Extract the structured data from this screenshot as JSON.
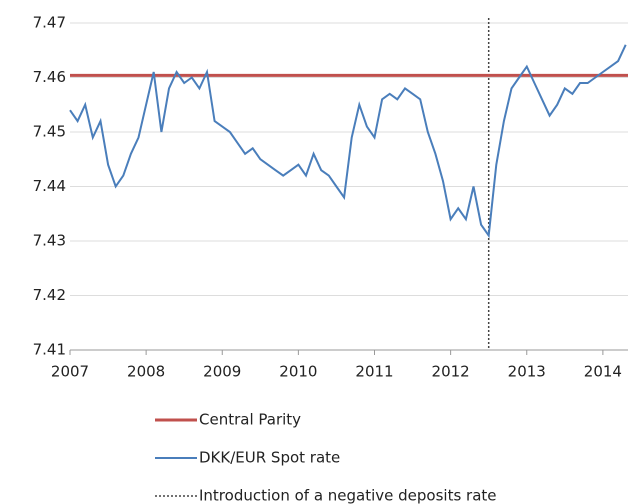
{
  "chart_data": {
    "type": "line",
    "x": [
      2007.0,
      2007.1,
      2007.2,
      2007.3,
      2007.4,
      2007.5,
      2007.6,
      2007.7,
      2007.8,
      2007.9,
      2008.0,
      2008.1,
      2008.2,
      2008.3,
      2008.4,
      2008.5,
      2008.6,
      2008.7,
      2008.8,
      2008.9,
      2009.0,
      2009.1,
      2009.2,
      2009.3,
      2009.4,
      2009.5,
      2009.6,
      2009.7,
      2009.8,
      2009.9,
      2010.0,
      2010.1,
      2010.2,
      2010.3,
      2010.4,
      2010.5,
      2010.6,
      2010.7,
      2010.8,
      2010.9,
      2011.0,
      2011.1,
      2011.2,
      2011.3,
      2011.4,
      2011.5,
      2011.6,
      2011.7,
      2011.8,
      2011.9,
      2012.0,
      2012.1,
      2012.2,
      2012.3,
      2012.4,
      2012.5,
      2012.6,
      2012.7,
      2012.8,
      2012.9,
      2013.0,
      2013.1,
      2013.2,
      2013.3,
      2013.4,
      2013.5,
      2013.6,
      2013.7,
      2013.8,
      2013.9,
      2014.0,
      2014.1,
      2014.2,
      2014.3
    ],
    "series": [
      {
        "name": "DKK/EUR Spot rate",
        "color": "#4a7ebb",
        "values": [
          7.454,
          7.452,
          7.455,
          7.449,
          7.452,
          7.444,
          7.44,
          7.442,
          7.446,
          7.449,
          7.455,
          7.461,
          7.45,
          7.458,
          7.461,
          7.459,
          7.46,
          7.458,
          7.461,
          7.452,
          7.451,
          7.45,
          7.448,
          7.446,
          7.447,
          7.445,
          7.444,
          7.443,
          7.442,
          7.443,
          7.444,
          7.442,
          7.446,
          7.443,
          7.442,
          7.44,
          7.438,
          7.449,
          7.455,
          7.451,
          7.449,
          7.456,
          7.457,
          7.456,
          7.458,
          7.457,
          7.456,
          7.45,
          7.446,
          7.441,
          7.434,
          7.436,
          7.434,
          7.44,
          7.433,
          7.431,
          7.444,
          7.452,
          7.458,
          7.46,
          7.462,
          7.459,
          7.456,
          7.453,
          7.455,
          7.458,
          7.457,
          7.459,
          7.459,
          7.46,
          7.461,
          7.462,
          7.463,
          7.466
        ]
      }
    ],
    "reference_lines": [
      {
        "name": "Central Parity",
        "color": "#c0504d",
        "value": 7.4604
      }
    ],
    "vlines": [
      {
        "name": "Introduction of a negative deposits rate",
        "color": "#444444",
        "value": 2012.5
      }
    ],
    "xlim": [
      2007,
      2014.33
    ],
    "xticks": [
      2007,
      2008,
      2009,
      2010,
      2011,
      2012,
      2013,
      2014
    ],
    "ylim": [
      7.41,
      7.47
    ],
    "yticks": [
      7.41,
      7.42,
      7.43,
      7.44,
      7.45,
      7.46,
      7.47
    ],
    "grid": true
  }
}
